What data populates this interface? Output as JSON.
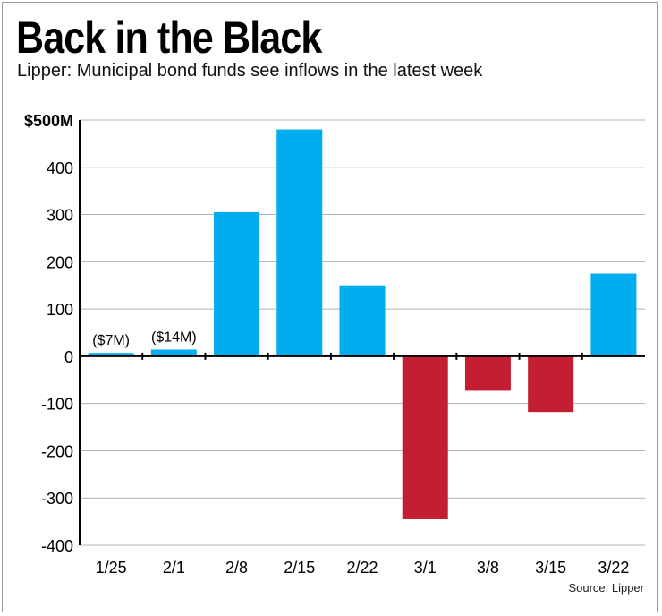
{
  "title": "Back in the Black",
  "subtitle": "Lipper: Municipal bond funds see inflows in the latest week",
  "source": "Source: Lipper",
  "colors": {
    "positive": "#00adee",
    "negative": "#c41e32",
    "grid": "#b3b3b3",
    "axis": "#000000"
  },
  "chart_data": {
    "type": "bar",
    "categories": [
      "1/25",
      "2/1",
      "2/8",
      "2/15",
      "2/22",
      "3/1",
      "3/8",
      "3/15",
      "3/22"
    ],
    "values": [
      7,
      14,
      305,
      480,
      150,
      -345,
      -73,
      -118,
      175
    ],
    "data_labels": [
      "($7M)",
      "($14M)",
      "",
      "",
      "",
      "",
      "",
      "",
      ""
    ],
    "ylim": [
      -400,
      500
    ],
    "yticks": [
      500,
      400,
      300,
      200,
      100,
      0,
      -100,
      -200,
      -300,
      -400
    ],
    "ytick_labels": [
      "$500M",
      "400",
      "300",
      "200",
      "100",
      "0",
      "-100",
      "-200",
      "-300",
      "-400"
    ],
    "grid": true,
    "legend": "none"
  }
}
